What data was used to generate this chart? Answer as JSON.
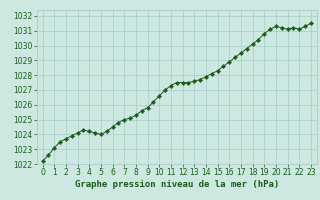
{
  "title": "Graphe pression niveau de la mer (hPa)",
  "background_color": "#cce8e0",
  "grid_color": "#a8ccc8",
  "line_color": "#1a5c1a",
  "marker_color": "#1a5c1a",
  "xlim": [
    -0.5,
    23.5
  ],
  "ylim": [
    1022,
    1032.4
  ],
  "xticks": [
    0,
    1,
    2,
    3,
    4,
    5,
    6,
    7,
    8,
    9,
    10,
    11,
    12,
    13,
    14,
    15,
    16,
    17,
    18,
    19,
    20,
    21,
    22,
    23
  ],
  "yticks": [
    1022,
    1023,
    1024,
    1025,
    1026,
    1027,
    1028,
    1029,
    1030,
    1031,
    1032
  ],
  "x": [
    0,
    0.5,
    1,
    1.5,
    2,
    2.5,
    3,
    3.5,
    4,
    4.5,
    5,
    5.5,
    6,
    6.5,
    7,
    7.5,
    8,
    8.5,
    9,
    9.5,
    10,
    10.5,
    11,
    11.5,
    12,
    12.5,
    13,
    13.5,
    14,
    14.5,
    15,
    15.5,
    16,
    16.5,
    17,
    17.5,
    18,
    18.5,
    19,
    19.5,
    20,
    20.5,
    21,
    21.5,
    22,
    22.5,
    23
  ],
  "y": [
    1022.2,
    1022.6,
    1023.1,
    1023.5,
    1023.7,
    1023.9,
    1024.1,
    1024.3,
    1024.2,
    1024.1,
    1024.0,
    1024.2,
    1024.5,
    1024.8,
    1025.0,
    1025.1,
    1025.3,
    1025.6,
    1025.8,
    1026.2,
    1026.6,
    1027.0,
    1027.3,
    1027.5,
    1027.5,
    1027.5,
    1027.6,
    1027.7,
    1027.9,
    1028.1,
    1028.3,
    1028.6,
    1028.9,
    1029.2,
    1029.5,
    1029.8,
    1030.1,
    1030.4,
    1030.8,
    1031.1,
    1031.3,
    1031.2,
    1031.1,
    1031.2,
    1031.1,
    1031.3,
    1031.5
  ],
  "tick_fontsize": 5.5,
  "title_fontsize": 6.5
}
